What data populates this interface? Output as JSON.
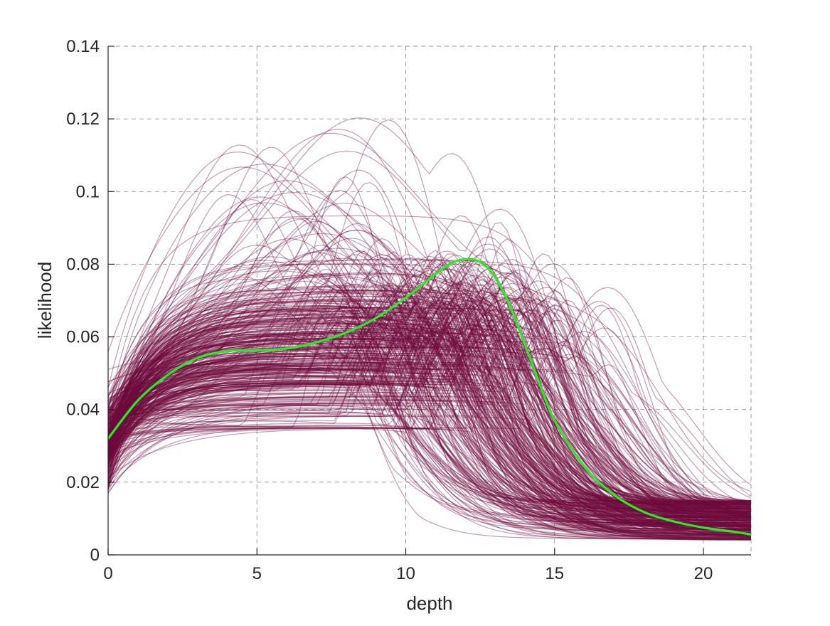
{
  "chart_data": {
    "type": "line",
    "title": "",
    "xlabel": "depth",
    "ylabel": "likelihood",
    "xlim": [
      0,
      21.6
    ],
    "ylim": [
      0,
      0.14
    ],
    "x_ticks": [
      0,
      5,
      10,
      15,
      20
    ],
    "x_tick_labels": [
      "0",
      "5",
      "10",
      "15",
      "20"
    ],
    "y_ticks": [
      0,
      0.02,
      0.04,
      0.06,
      0.08,
      0.1,
      0.12,
      0.14
    ],
    "y_tick_labels": [
      "0",
      "0.02",
      "0.04",
      "0.06",
      "0.08",
      "0.1",
      "0.12",
      "0.14"
    ],
    "grid": true,
    "grid_style": "dashed",
    "ensemble": {
      "count": 400,
      "color": "#6e0a3c",
      "opacity": 0.4,
      "description_value_ranges": {
        "y_at_0": [
          0.017,
          0.064
        ],
        "peak_y": [
          0.036,
          0.127
        ],
        "peak_x": [
          4.5,
          15
        ],
        "y_at_21.6": [
          0.003,
          0.021
        ]
      }
    },
    "series": [
      {
        "color": "#22ee22",
        "x": [
          0,
          1,
          2,
          3,
          4,
          5,
          6,
          7,
          8,
          9,
          10,
          11,
          11.5,
          12,
          12.5,
          13,
          13.5,
          14,
          14.5,
          15,
          16,
          17,
          18,
          19,
          20,
          21,
          21.6
        ],
        "y": [
          0.032,
          0.0425,
          0.0495,
          0.0542,
          0.0561,
          0.0563,
          0.0568,
          0.0585,
          0.0612,
          0.0652,
          0.0708,
          0.0773,
          0.0802,
          0.0814,
          0.0806,
          0.0765,
          0.0685,
          0.058,
          0.047,
          0.037,
          0.0243,
          0.0165,
          0.0118,
          0.0092,
          0.0075,
          0.0064,
          0.0056
        ]
      }
    ]
  }
}
